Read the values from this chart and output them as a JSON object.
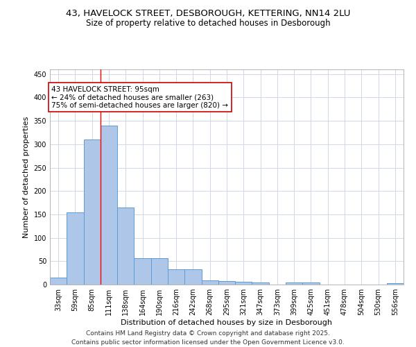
{
  "title_line1": "43, HAVELOCK STREET, DESBOROUGH, KETTERING, NN14 2LU",
  "title_line2": "Size of property relative to detached houses in Desborough",
  "xlabel": "Distribution of detached houses by size in Desborough",
  "ylabel": "Number of detached properties",
  "categories": [
    "33sqm",
    "59sqm",
    "85sqm",
    "111sqm",
    "138sqm",
    "164sqm",
    "190sqm",
    "216sqm",
    "242sqm",
    "268sqm",
    "295sqm",
    "321sqm",
    "347sqm",
    "373sqm",
    "399sqm",
    "425sqm",
    "451sqm",
    "478sqm",
    "504sqm",
    "530sqm",
    "556sqm"
  ],
  "bar_heights": [
    15,
    155,
    310,
    340,
    165,
    57,
    57,
    33,
    33,
    9,
    7,
    6,
    5,
    0,
    4,
    5,
    0,
    0,
    0,
    0,
    3
  ],
  "bar_color": "#aec6e8",
  "bar_edge_color": "#5b9bd5",
  "vline_x_index": 2,
  "vline_color": "#ff0000",
  "annotation_text_line1": "43 HAVELOCK STREET: 95sqm",
  "annotation_text_line2": "← 24% of detached houses are smaller (263)",
  "annotation_text_line3": "75% of semi-detached houses are larger (820) →",
  "annotation_box_color": "#ffffff",
  "annotation_box_edge": "#cc0000",
  "ylim": [
    0,
    460
  ],
  "yticks": [
    0,
    50,
    100,
    150,
    200,
    250,
    300,
    350,
    400,
    450
  ],
  "background_color": "#ffffff",
  "grid_color": "#d0d8e8",
  "footer_line1": "Contains HM Land Registry data © Crown copyright and database right 2025.",
  "footer_line2": "Contains public sector information licensed under the Open Government Licence v3.0.",
  "title_fontsize": 9.5,
  "subtitle_fontsize": 8.5,
  "axis_label_fontsize": 8,
  "tick_fontsize": 7,
  "annotation_fontsize": 7.5,
  "footer_fontsize": 6.5
}
